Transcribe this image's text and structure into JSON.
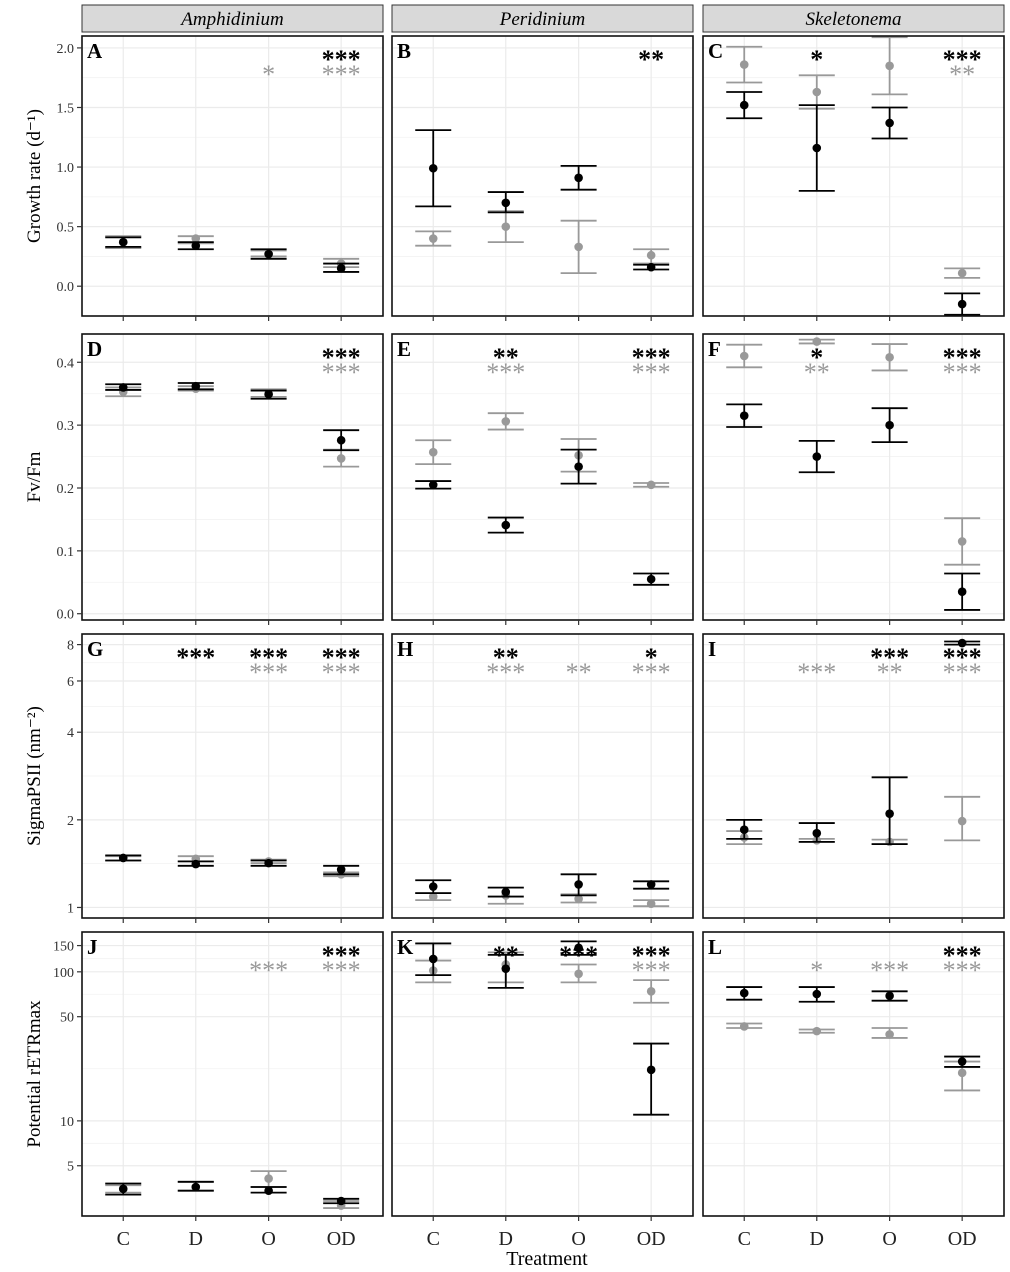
{
  "figure": {
    "xlabel": "Treatment",
    "columns": [
      "Amphidinium",
      "Peridinium",
      "Skeletonema"
    ],
    "row_labels": [
      "Growth rate (d⁻¹)",
      "Fv/Fm",
      "SigmaPSII (nm⁻²)",
      "Potential rETRmax"
    ],
    "colors": {
      "black_series": "#000000",
      "gray_series": "#999999",
      "strip_fill": "#d9d9d9",
      "grid": "#ebebeb"
    }
  },
  "chart_data": [
    {
      "panel": "A",
      "type": "scatter",
      "column": "Amphidinium",
      "ylabel": "Growth rate (d⁻¹)",
      "scale": "linear",
      "ylim": [
        -0.25,
        2.1
      ],
      "yticks": [
        0.0,
        0.5,
        1.0,
        1.5,
        2.0
      ],
      "ytick_labels": [
        "0.0",
        "0.5",
        "1.0",
        "1.5",
        "2.0"
      ],
      "categories": [
        "C",
        "D",
        "O",
        "OD"
      ],
      "series": [
        {
          "color": "#000000",
          "mean": [
            0.37,
            0.34,
            0.27,
            0.15
          ],
          "lower": [
            0.33,
            0.31,
            0.23,
            0.12
          ],
          "upper": [
            0.41,
            0.37,
            0.31,
            0.19
          ]
        },
        {
          "color": "#999999",
          "mean": [
            0.37,
            0.4,
            0.27,
            0.19
          ],
          "lower": [
            0.32,
            0.36,
            0.25,
            0.16
          ],
          "upper": [
            0.42,
            0.42,
            0.3,
            0.23
          ]
        }
      ],
      "stars": [
        {
          "category": "O",
          "black": "",
          "gray": "*"
        },
        {
          "category": "OD",
          "black": "***",
          "gray": "***"
        }
      ]
    },
    {
      "panel": "B",
      "type": "scatter",
      "column": "Peridinium",
      "scale": "linear",
      "ylim": [
        -0.25,
        2.1
      ],
      "yticks": [
        0.0,
        0.5,
        1.0,
        1.5,
        2.0
      ],
      "categories": [
        "C",
        "D",
        "O",
        "OD"
      ],
      "series": [
        {
          "color": "#000000",
          "mean": [
            0.99,
            0.7,
            0.91,
            0.16
          ],
          "lower": [
            0.67,
            0.62,
            0.81,
            0.14
          ],
          "upper": [
            1.31,
            0.79,
            1.01,
            0.18
          ]
        },
        {
          "color": "#999999",
          "mean": [
            0.4,
            0.5,
            0.33,
            0.26
          ],
          "lower": [
            0.34,
            0.37,
            0.11,
            0.19
          ],
          "upper": [
            0.46,
            0.63,
            0.55,
            0.31
          ]
        }
      ],
      "stars": [
        {
          "category": "OD",
          "black": "**",
          "gray": ""
        }
      ]
    },
    {
      "panel": "C",
      "type": "scatter",
      "column": "Skeletonema",
      "scale": "linear",
      "ylim": [
        -0.25,
        2.1
      ],
      "yticks": [
        0.0,
        0.5,
        1.0,
        1.5,
        2.0
      ],
      "categories": [
        "C",
        "D",
        "O",
        "OD"
      ],
      "series": [
        {
          "color": "#000000",
          "mean": [
            1.52,
            1.16,
            1.37,
            -0.15
          ],
          "lower": [
            1.41,
            0.8,
            1.24,
            -0.24
          ],
          "upper": [
            1.63,
            1.52,
            1.5,
            -0.06
          ]
        },
        {
          "color": "#999999",
          "mean": [
            1.86,
            1.63,
            1.85,
            0.11
          ],
          "lower": [
            1.71,
            1.49,
            1.61,
            0.07
          ],
          "upper": [
            2.01,
            1.77,
            2.09,
            0.15
          ]
        }
      ],
      "stars": [
        {
          "category": "D",
          "black": "*",
          "gray": ""
        },
        {
          "category": "OD",
          "black": "***",
          "gray": "**"
        }
      ]
    },
    {
      "panel": "D",
      "type": "scatter",
      "column": "Amphidinium",
      "ylabel": "Fv/Fm",
      "scale": "linear",
      "ylim": [
        -0.01,
        0.445
      ],
      "yticks": [
        0.0,
        0.1,
        0.2,
        0.3,
        0.4
      ],
      "ytick_labels": [
        "0.0",
        "0.1",
        "0.2",
        "0.3",
        "0.4"
      ],
      "categories": [
        "C",
        "D",
        "O",
        "OD"
      ],
      "series": [
        {
          "color": "#000000",
          "mean": [
            0.36,
            0.362,
            0.349,
            0.276
          ],
          "lower": [
            0.356,
            0.357,
            0.342,
            0.26
          ],
          "upper": [
            0.365,
            0.367,
            0.355,
            0.292
          ]
        },
        {
          "color": "#999999",
          "mean": [
            0.353,
            0.358,
            0.35,
            0.247
          ],
          "lower": [
            0.346,
            0.355,
            0.345,
            0.234
          ],
          "upper": [
            0.36,
            0.362,
            0.357,
            0.261
          ]
        }
      ],
      "stars": [
        {
          "category": "OD",
          "black": "***",
          "gray": "***"
        }
      ]
    },
    {
      "panel": "E",
      "type": "scatter",
      "column": "Peridinium",
      "scale": "linear",
      "ylim": [
        -0.01,
        0.445
      ],
      "yticks": [
        0.0,
        0.1,
        0.2,
        0.3,
        0.4
      ],
      "categories": [
        "C",
        "D",
        "O",
        "OD"
      ],
      "series": [
        {
          "color": "#000000",
          "mean": [
            0.205,
            0.141,
            0.234,
            0.055
          ],
          "lower": [
            0.199,
            0.129,
            0.207,
            0.046
          ],
          "upper": [
            0.211,
            0.153,
            0.261,
            0.064
          ]
        },
        {
          "color": "#999999",
          "mean": [
            0.257,
            0.306,
            0.252,
            0.205
          ],
          "lower": [
            0.238,
            0.293,
            0.226,
            0.202
          ],
          "upper": [
            0.276,
            0.319,
            0.278,
            0.208
          ]
        }
      ],
      "stars": [
        {
          "category": "D",
          "black": "**",
          "gray": "***"
        },
        {
          "category": "OD",
          "black": "***",
          "gray": "***"
        }
      ]
    },
    {
      "panel": "F",
      "type": "scatter",
      "column": "Skeletonema",
      "scale": "linear",
      "ylim": [
        -0.01,
        0.445
      ],
      "yticks": [
        0.0,
        0.1,
        0.2,
        0.3,
        0.4
      ],
      "categories": [
        "C",
        "D",
        "O",
        "OD"
      ],
      "series": [
        {
          "color": "#000000",
          "mean": [
            0.315,
            0.25,
            0.3,
            0.035
          ],
          "lower": [
            0.297,
            0.225,
            0.273,
            0.006
          ],
          "upper": [
            0.333,
            0.275,
            0.327,
            0.064
          ]
        },
        {
          "color": "#999999",
          "mean": [
            0.41,
            0.433,
            0.408,
            0.115
          ],
          "lower": [
            0.392,
            0.43,
            0.387,
            0.078
          ],
          "upper": [
            0.428,
            0.436,
            0.429,
            0.152
          ]
        }
      ],
      "stars": [
        {
          "category": "D",
          "black": "*",
          "gray": "**"
        },
        {
          "category": "OD",
          "black": "***",
          "gray": "***"
        }
      ]
    },
    {
      "panel": "G",
      "type": "scatter",
      "column": "Amphidinium",
      "ylabel": "SigmaPSII (nm⁻²)",
      "scale": "log",
      "ylim": [
        0.92,
        8.7
      ],
      "yticks": [
        1,
        2,
        4,
        6,
        8
      ],
      "ytick_labels": [
        "1",
        "2",
        "4",
        "6",
        "8"
      ],
      "categories": [
        "C",
        "D",
        "O",
        "OD"
      ],
      "series": [
        {
          "color": "#000000",
          "mean": [
            1.48,
            1.41,
            1.42,
            1.35
          ],
          "lower": [
            1.45,
            1.39,
            1.39,
            1.3
          ],
          "upper": [
            1.51,
            1.44,
            1.45,
            1.39
          ]
        },
        {
          "color": "#999999",
          "mean": [
            1.48,
            1.47,
            1.44,
            1.3
          ],
          "lower": [
            1.45,
            1.44,
            1.42,
            1.28
          ],
          "upper": [
            1.5,
            1.5,
            1.46,
            1.32
          ]
        }
      ],
      "stars": [
        {
          "category": "D",
          "black": "***",
          "gray": ""
        },
        {
          "category": "O",
          "black": "***",
          "gray": "***"
        },
        {
          "category": "OD",
          "black": "***",
          "gray": "***"
        }
      ]
    },
    {
      "panel": "H",
      "type": "scatter",
      "column": "Peridinium",
      "scale": "log",
      "ylim": [
        0.92,
        8.7
      ],
      "yticks": [
        1,
        2,
        4,
        6,
        8
      ],
      "categories": [
        "C",
        "D",
        "O",
        "OD"
      ],
      "series": [
        {
          "color": "#000000",
          "mean": [
            1.18,
            1.13,
            1.2,
            1.2
          ],
          "lower": [
            1.12,
            1.09,
            1.1,
            1.16
          ],
          "upper": [
            1.24,
            1.17,
            1.3,
            1.23
          ]
        },
        {
          "color": "#999999",
          "mean": [
            1.09,
            1.1,
            1.07,
            1.03
          ],
          "lower": [
            1.06,
            1.03,
            1.04,
            1.01
          ],
          "upper": [
            1.12,
            1.17,
            1.11,
            1.06
          ]
        }
      ],
      "stars": [
        {
          "category": "D",
          "black": "**",
          "gray": "***"
        },
        {
          "category": "O",
          "black": "",
          "gray": "**"
        },
        {
          "category": "OD",
          "black": "*",
          "gray": "***"
        }
      ]
    },
    {
      "panel": "I",
      "type": "scatter",
      "column": "Skeletonema",
      "scale": "log",
      "ylim": [
        0.92,
        8.7
      ],
      "yticks": [
        1,
        2,
        4,
        6,
        8
      ],
      "categories": [
        "C",
        "D",
        "O",
        "OD"
      ],
      "series": [
        {
          "color": "#000000",
          "mean": [
            1.85,
            1.8,
            2.1,
            8.1
          ],
          "lower": [
            1.72,
            1.68,
            1.65,
            8.0
          ],
          "upper": [
            2.0,
            1.95,
            2.8,
            8.2
          ]
        },
        {
          "color": "#999999",
          "mean": [
            1.74,
            1.7,
            1.68,
            1.98
          ],
          "lower": [
            1.65,
            1.68,
            1.65,
            1.7
          ],
          "upper": [
            1.83,
            1.72,
            1.71,
            2.4
          ]
        }
      ],
      "stars": [
        {
          "category": "D",
          "black": "",
          "gray": "***"
        },
        {
          "category": "O",
          "black": "***",
          "gray": "**"
        },
        {
          "category": "OD",
          "black": "***",
          "gray": "***"
        }
      ]
    },
    {
      "panel": "J",
      "type": "scatter",
      "column": "Amphidinium",
      "ylabel": "Potential rETRmax",
      "scale": "log",
      "ylim": [
        2.3,
        185
      ],
      "yticks": [
        5,
        10,
        50,
        100,
        150
      ],
      "ytick_labels": [
        "5",
        "10",
        "50",
        "100",
        "150"
      ],
      "categories": [
        "C",
        "D",
        "O",
        "OD"
      ],
      "series": [
        {
          "color": "#000000",
          "mean": [
            3.5,
            3.6,
            3.4,
            2.9
          ],
          "lower": [
            3.2,
            3.4,
            3.3,
            2.8
          ],
          "upper": [
            3.8,
            3.9,
            3.6,
            3.0
          ]
        },
        {
          "color": "#999999",
          "mean": [
            3.5,
            3.6,
            4.1,
            2.7
          ],
          "lower": [
            3.3,
            3.4,
            3.6,
            2.6
          ],
          "upper": [
            3.7,
            3.9,
            4.6,
            2.9
          ]
        }
      ],
      "stars": [
        {
          "category": "O",
          "black": "",
          "gray": "***"
        },
        {
          "category": "OD",
          "black": "***",
          "gray": "***"
        }
      ]
    },
    {
      "panel": "K",
      "type": "scatter",
      "column": "Peridinium",
      "scale": "log",
      "ylim": [
        2.3,
        185
      ],
      "yticks": [
        5,
        10,
        50,
        100,
        150
      ],
      "categories": [
        "C",
        "D",
        "O",
        "OD"
      ],
      "series": [
        {
          "color": "#000000",
          "mean": [
            122,
            105,
            145,
            22
          ],
          "lower": [
            95,
            78,
            130,
            11
          ],
          "upper": [
            155,
            130,
            160,
            33
          ]
        },
        {
          "color": "#999999",
          "mean": [
            102,
            112,
            97,
            74
          ],
          "lower": [
            85,
            85,
            85,
            62
          ],
          "upper": [
            119,
            135,
            112,
            88
          ]
        }
      ],
      "stars": [
        {
          "category": "D",
          "black": "**",
          "gray": ""
        },
        {
          "category": "O",
          "black": "***",
          "gray": ""
        },
        {
          "category": "OD",
          "black": "***",
          "gray": "***"
        }
      ]
    },
    {
      "panel": "L",
      "type": "scatter",
      "column": "Skeletonema",
      "scale": "log",
      "ylim": [
        2.3,
        185
      ],
      "yticks": [
        5,
        10,
        50,
        100,
        150
      ],
      "categories": [
        "C",
        "D",
        "O",
        "OD"
      ],
      "series": [
        {
          "color": "#000000",
          "mean": [
            72,
            71,
            69,
            25
          ],
          "lower": [
            65,
            63,
            64,
            23
          ],
          "upper": [
            79,
            79,
            74,
            27
          ]
        },
        {
          "color": "#999999",
          "mean": [
            43,
            40,
            38,
            21
          ],
          "lower": [
            42,
            39,
            36,
            16
          ],
          "upper": [
            45,
            41,
            42,
            25
          ]
        }
      ],
      "stars": [
        {
          "category": "D",
          "black": "",
          "gray": "*"
        },
        {
          "category": "O",
          "black": "",
          "gray": "***"
        },
        {
          "category": "OD",
          "black": "***",
          "gray": "***"
        }
      ]
    }
  ]
}
